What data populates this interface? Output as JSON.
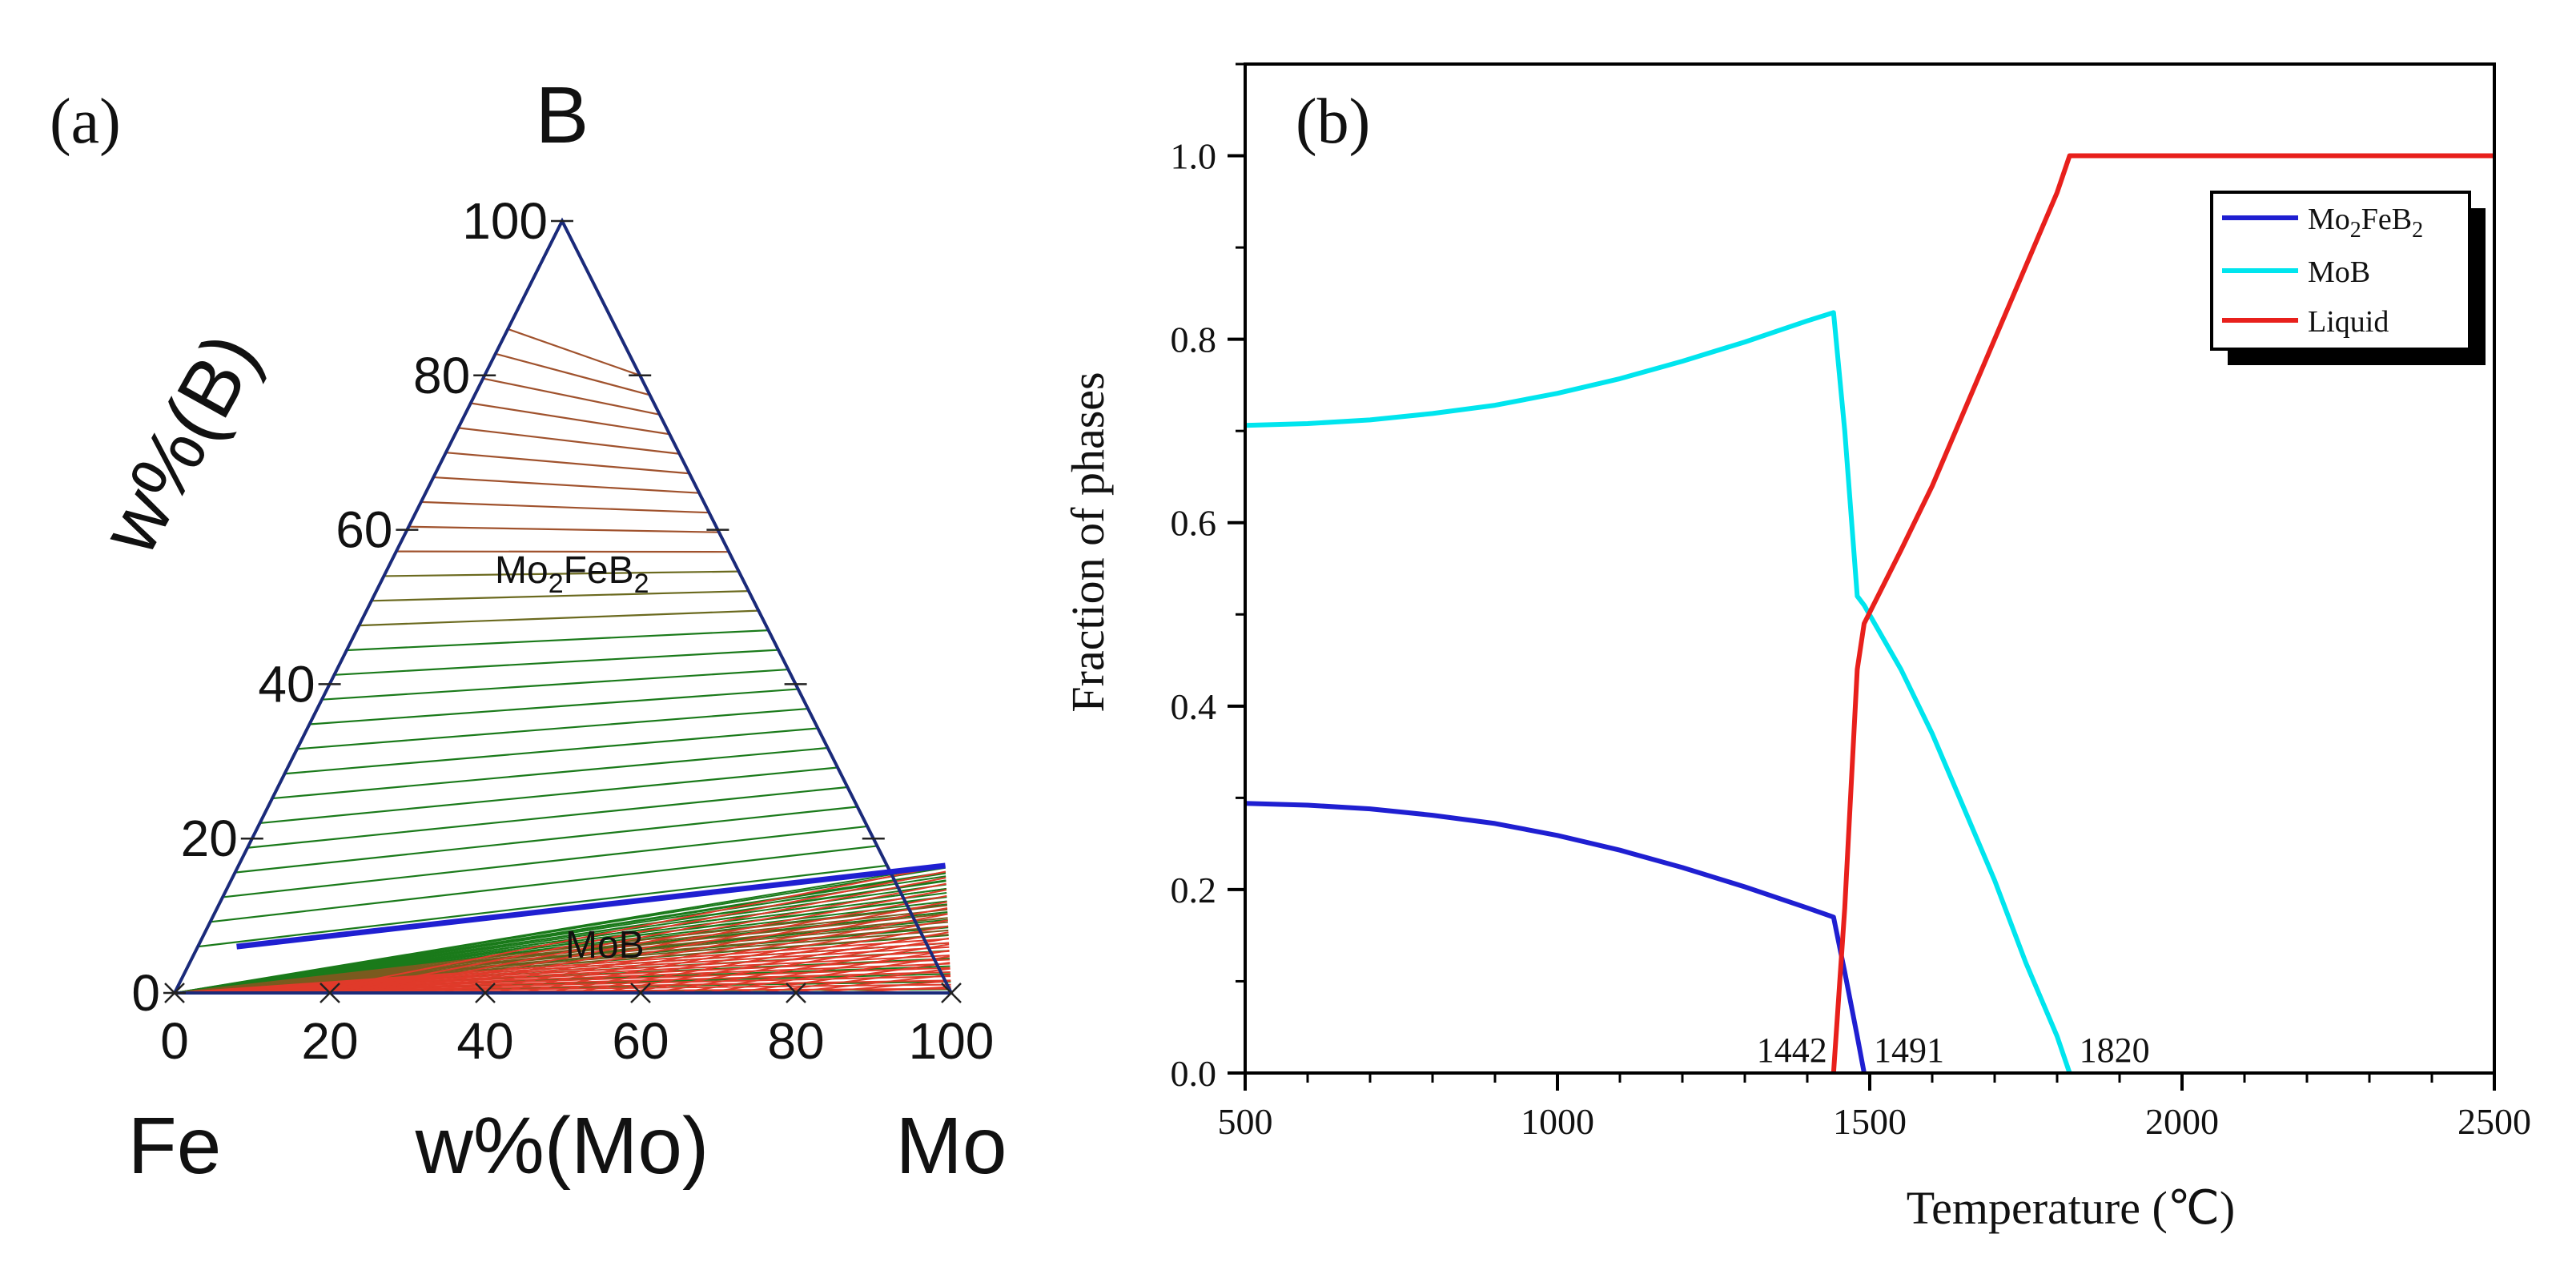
{
  "chart_data": [
    {
      "panel": "(a)",
      "type": "ternary",
      "title": "",
      "vertices": {
        "top": "B",
        "left": "Fe",
        "right": "Mo"
      },
      "xlabel": "w%(Mo)",
      "ylabel": "w%(B)",
      "x_ticks": [
        "0",
        "20",
        "40",
        "60",
        "80",
        "100"
      ],
      "y_ticks": [
        "0",
        "20",
        "40",
        "60",
        "80",
        "100"
      ],
      "x_tick_values": [
        0,
        20,
        40,
        60,
        80,
        100
      ],
      "y_tick_values": [
        0,
        20,
        40,
        60,
        80,
        100
      ],
      "regions": [
        {
          "label_main": "Mo",
          "label_sub1": "2",
          "label_mid": "FeB",
          "label_sub2": "2",
          "label_full": "Mo2FeB2",
          "color": "#a0522d"
        },
        {
          "label_main": "MoB",
          "label_full": "MoB",
          "color": "#d0302a"
        }
      ],
      "boundary": {
        "description": "blue phase boundary line",
        "points": [
          {
            "mo": 5,
            "b": 6
          },
          {
            "mo": 91,
            "b": 16.5
          }
        ],
        "color": "#1f1fd1"
      },
      "tie_line_colors": {
        "upper": "#a0522d",
        "lower_left": "#1a7a1a",
        "lower_right": "#e03a2a"
      }
    },
    {
      "panel": "(b)",
      "type": "line",
      "title": "",
      "xlabel": "Temperature (℃)",
      "ylabel": "Fraction of phases",
      "xlim": [
        500,
        2500
      ],
      "ylim": [
        0,
        1.1
      ],
      "x_ticks": [
        500,
        1000,
        1500,
        2000,
        2500
      ],
      "y_ticks": [
        "0.0",
        "0.2",
        "0.4",
        "0.6",
        "0.8",
        "1.0"
      ],
      "y_tick_values": [
        0,
        0.2,
        0.4,
        0.6,
        0.8,
        1.0
      ],
      "legend_position": "top-right",
      "legend": [
        {
          "name_main": "Mo",
          "name_sub1": "2",
          "name_mid": "FeB",
          "name_sub2": "2",
          "color": "#1f1fd1"
        },
        {
          "name_main": "MoB",
          "color": "#00e5ee"
        },
        {
          "name_main": "Liquid",
          "color": "#e8201c"
        }
      ],
      "series": [
        {
          "name": "Mo2FeB2",
          "color": "#1f1fd1",
          "points": [
            [
              500,
              0.294
            ],
            [
              600,
              0.292
            ],
            [
              700,
              0.288
            ],
            [
              800,
              0.281
            ],
            [
              900,
              0.272
            ],
            [
              1000,
              0.259
            ],
            [
              1100,
              0.243
            ],
            [
              1200,
              0.224
            ],
            [
              1300,
              0.203
            ],
            [
              1400,
              0.18
            ],
            [
              1442,
              0.17
            ],
            [
              1460,
              0.11
            ],
            [
              1480,
              0.04
            ],
            [
              1491,
              0.0
            ]
          ]
        },
        {
          "name": "MoB",
          "color": "#00e5ee",
          "points": [
            [
              500,
              0.706
            ],
            [
              600,
              0.708
            ],
            [
              700,
              0.712
            ],
            [
              800,
              0.719
            ],
            [
              900,
              0.728
            ],
            [
              1000,
              0.741
            ],
            [
              1100,
              0.757
            ],
            [
              1200,
              0.776
            ],
            [
              1300,
              0.797
            ],
            [
              1400,
              0.82
            ],
            [
              1442,
              0.829
            ],
            [
              1460,
              0.7
            ],
            [
              1480,
              0.52
            ],
            [
              1491,
              0.51
            ],
            [
              1550,
              0.44
            ],
            [
              1600,
              0.37
            ],
            [
              1650,
              0.29
            ],
            [
              1700,
              0.21
            ],
            [
              1750,
              0.12
            ],
            [
              1800,
              0.04
            ],
            [
              1820,
              0.0
            ]
          ]
        },
        {
          "name": "Liquid",
          "color": "#e8201c",
          "points": [
            [
              1442,
              0.0
            ],
            [
              1460,
              0.18
            ],
            [
              1480,
              0.44
            ],
            [
              1491,
              0.49
            ],
            [
              1550,
              0.57
            ],
            [
              1600,
              0.64
            ],
            [
              1650,
              0.72
            ],
            [
              1700,
              0.8
            ],
            [
              1750,
              0.88
            ],
            [
              1800,
              0.96
            ],
            [
              1820,
              1.0
            ],
            [
              2500,
              1.0
            ]
          ]
        }
      ],
      "annotations": [
        {
          "text": "1442",
          "x": 1442,
          "y": 0.0
        },
        {
          "text": "1491",
          "x": 1491,
          "y": 0.0
        },
        {
          "text": "1820",
          "x": 1820,
          "y": 0.0
        }
      ]
    }
  ]
}
